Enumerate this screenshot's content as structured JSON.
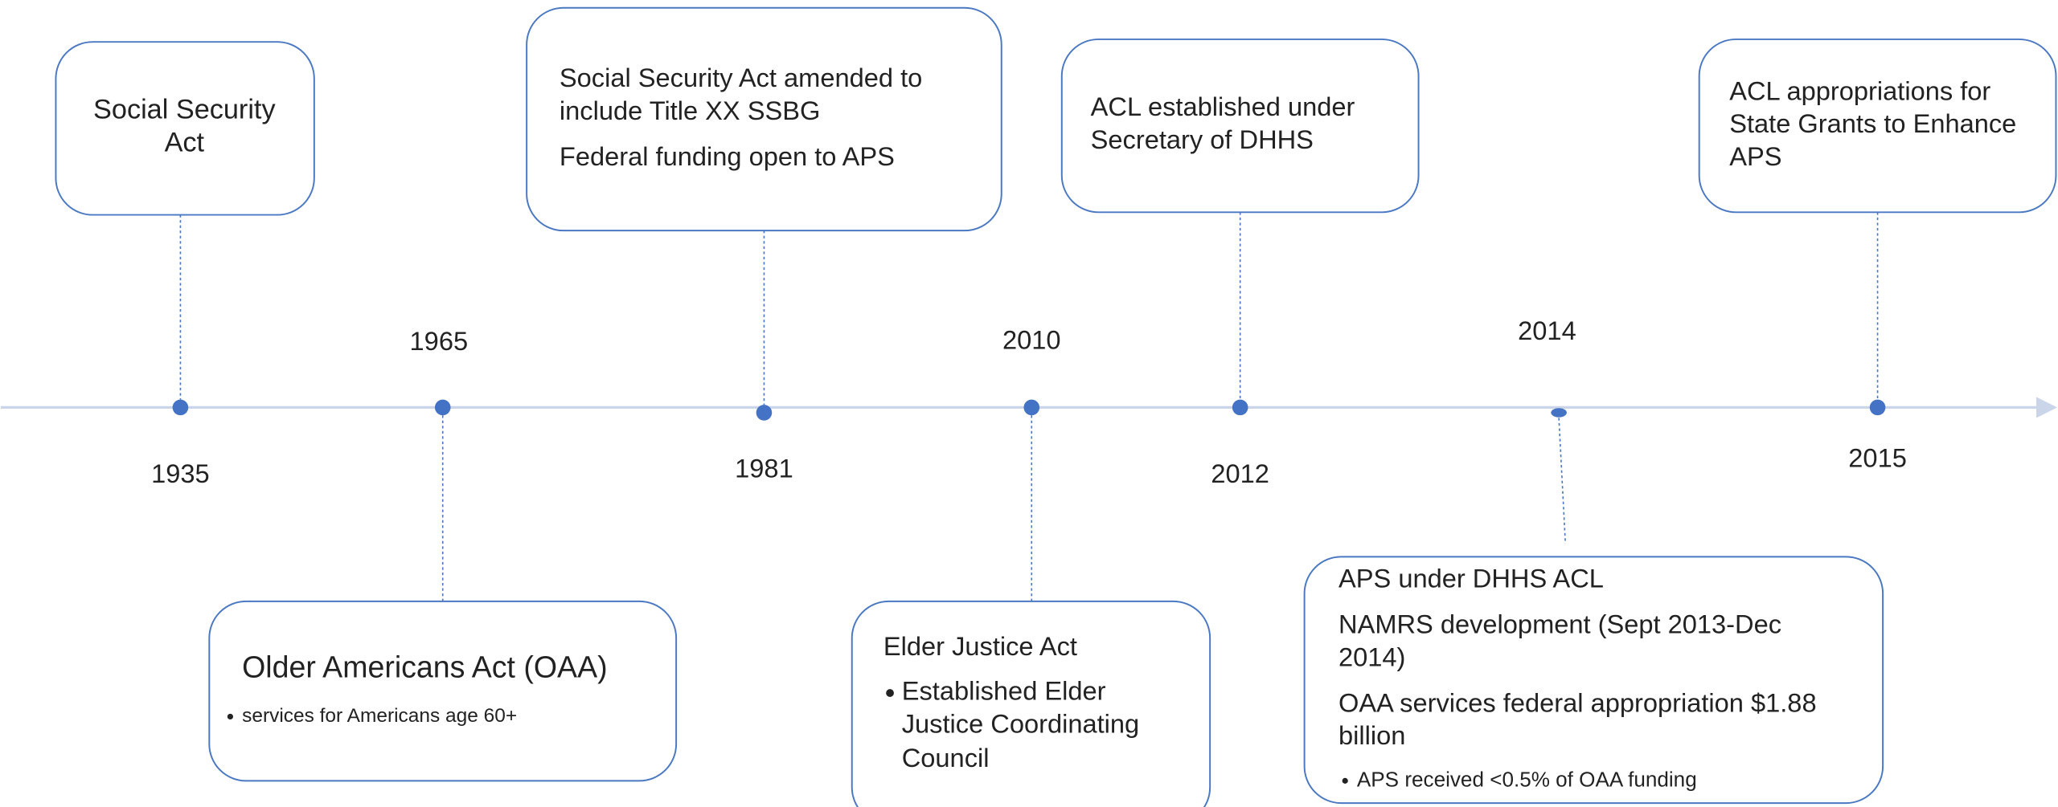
{
  "events": [
    {
      "year": "1935",
      "paragraphs": [
        [
          "Social Security",
          "Act"
        ]
      ]
    },
    {
      "year": "1965",
      "paragraphs": [
        [
          "Older Americans Act (OAA)"
        ]
      ],
      "bullets": [
        [
          "services for Americans age 60+"
        ]
      ]
    },
    {
      "year": "1981",
      "paragraphs": [
        [
          "Social Security Act amended to",
          "include Title XX SSBG"
        ],
        [
          "Federal funding open to APS"
        ]
      ]
    },
    {
      "year": "2010",
      "paragraphs": [
        [
          "Elder Justice Act"
        ]
      ],
      "bullets": [
        [
          "Established Elder",
          "Justice Coordinating",
          "Council"
        ]
      ]
    },
    {
      "year": "2012",
      "paragraphs": [
        [
          "ACL established under",
          "Secretary of DHHS"
        ]
      ]
    },
    {
      "year": "2014",
      "paragraphs": [
        [
          "APS under DHHS ACL"
        ],
        [
          "NAMRS development (Sept 2013-Dec",
          "2014)"
        ],
        [
          "OAA services federal appropriation $1.88",
          "billion"
        ]
      ],
      "bullets": [
        [
          "APS received <0.5% of OAA funding"
        ]
      ]
    },
    {
      "year": "2015",
      "paragraphs": [
        [
          "ACL appropriations for",
          "State Grants to Enhance",
          "APS"
        ]
      ]
    }
  ]
}
